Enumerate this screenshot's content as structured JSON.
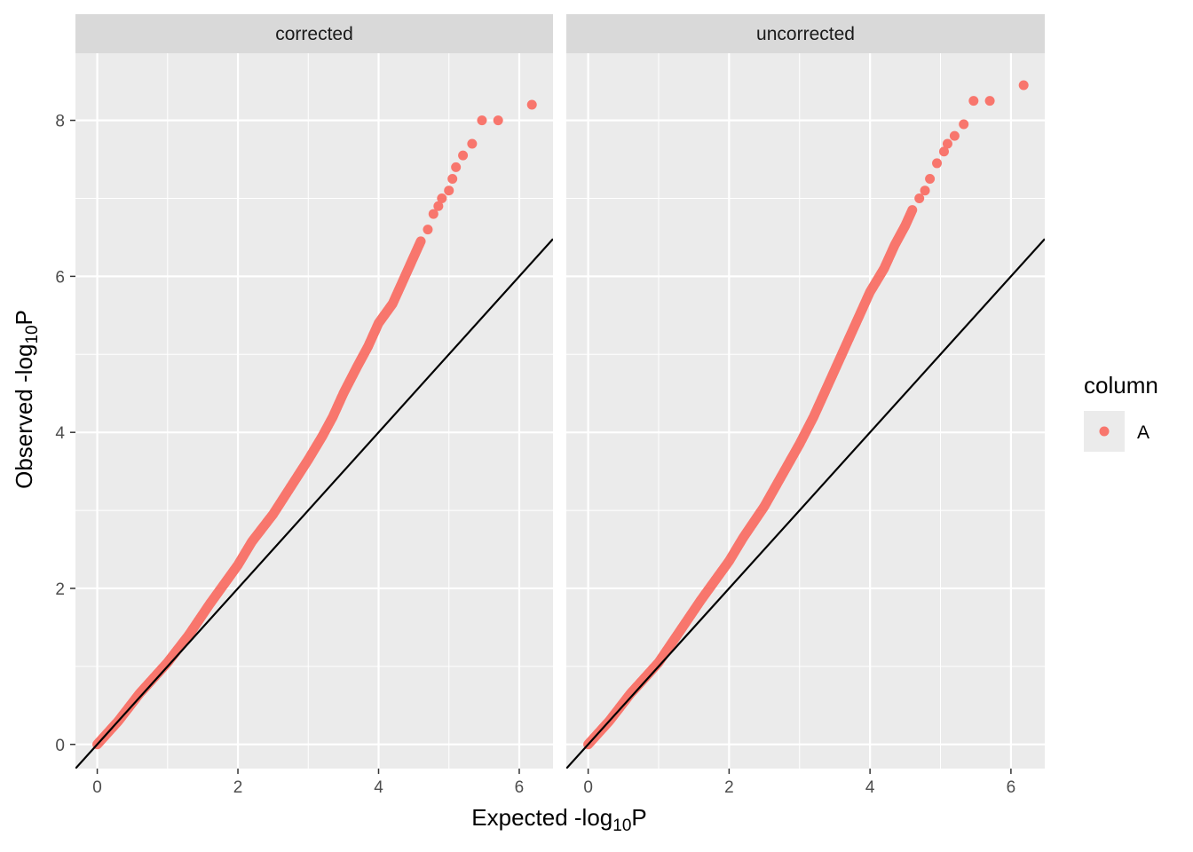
{
  "chart_data": {
    "type": "scatter",
    "xlabel": "Expected -log10P",
    "ylabel": "Observed -log10P",
    "xlim": [
      -0.31,
      6.48
    ],
    "ylim": [
      -0.31,
      8.86
    ],
    "x_ticks": [
      "0",
      "2",
      "4",
      "6"
    ],
    "y_ticks": [
      "0",
      "2",
      "4",
      "6",
      "8"
    ],
    "x_tick_values": [
      0,
      2,
      4,
      6
    ],
    "y_tick_values": [
      0,
      2,
      4,
      6,
      8
    ],
    "grid": true,
    "reference_line": {
      "slope": 1,
      "intercept": 0,
      "color": "#000000"
    },
    "point_color": "#F8766D",
    "legend": {
      "title": "column",
      "position": "right",
      "entries": [
        {
          "label": "A",
          "color": "#F8766D"
        }
      ]
    },
    "panels": [
      {
        "label": "corrected",
        "series": [
          {
            "name": "A",
            "x": [
              0,
              0.3,
              0.6,
              1.0,
              1.3,
              1.6,
              1.8,
              2.0,
              2.2,
              2.5,
              2.75,
              3.0,
              3.2,
              3.35,
              3.5,
              3.7,
              3.85,
              4.0,
              4.2,
              4.35,
              4.5,
              4.6,
              4.7,
              4.78,
              4.85,
              4.9,
              5.0,
              5.05,
              5.1,
              5.2,
              5.33,
              5.47,
              5.7,
              6.18
            ],
            "y": [
              0,
              0.3,
              0.65,
              1.05,
              1.4,
              1.8,
              2.05,
              2.3,
              2.6,
              2.95,
              3.3,
              3.65,
              3.95,
              4.2,
              4.5,
              4.85,
              5.1,
              5.4,
              5.65,
              5.95,
              6.25,
              6.45,
              6.6,
              6.8,
              6.9,
              7.0,
              7.1,
              7.25,
              7.4,
              7.55,
              7.7,
              8.0,
              8.0,
              8.2
            ]
          }
        ]
      },
      {
        "label": "uncorrected",
        "series": [
          {
            "name": "A",
            "x": [
              0,
              0.3,
              0.6,
              1.0,
              1.3,
              1.6,
              1.8,
              2.0,
              2.2,
              2.5,
              2.75,
              3.0,
              3.2,
              3.35,
              3.5,
              3.7,
              3.85,
              4.0,
              4.2,
              4.35,
              4.5,
              4.6,
              4.7,
              4.78,
              4.85,
              4.95,
              5.05,
              5.1,
              5.2,
              5.33,
              5.47,
              5.7,
              6.18
            ],
            "y": [
              0,
              0.3,
              0.65,
              1.05,
              1.45,
              1.85,
              2.1,
              2.35,
              2.65,
              3.05,
              3.45,
              3.85,
              4.2,
              4.5,
              4.8,
              5.2,
              5.5,
              5.8,
              6.1,
              6.4,
              6.65,
              6.85,
              7.0,
              7.1,
              7.25,
              7.45,
              7.6,
              7.7,
              7.8,
              7.95,
              8.25,
              8.25,
              8.45
            ]
          }
        ]
      }
    ]
  }
}
